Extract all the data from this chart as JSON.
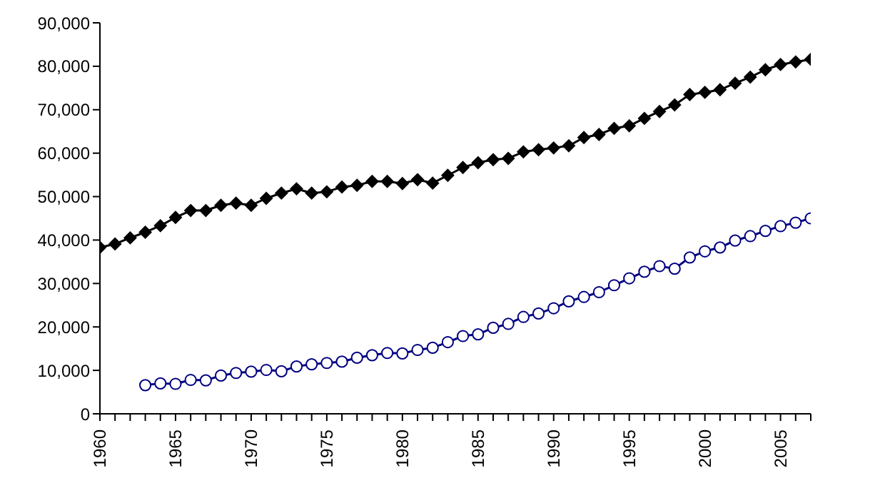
{
  "chart_data": {
    "type": "line",
    "x": [
      1960,
      1961,
      1962,
      1963,
      1964,
      1965,
      1966,
      1967,
      1968,
      1969,
      1970,
      1971,
      1972,
      1973,
      1974,
      1975,
      1976,
      1977,
      1978,
      1979,
      1980,
      1981,
      1982,
      1983,
      1984,
      1985,
      1986,
      1987,
      1988,
      1989,
      1990,
      1991,
      1992,
      1993,
      1994,
      1995,
      1996,
      1997,
      1998,
      1999,
      2000,
      2001,
      2002,
      2003,
      2004,
      2005,
      2006,
      2007
    ],
    "series": [
      {
        "color": "#000000",
        "marker": "diamond",
        "values": [
          38300,
          39100,
          40500,
          41800,
          43300,
          45200,
          46800,
          46800,
          48000,
          48500,
          48000,
          49600,
          50800,
          51800,
          50800,
          51100,
          52200,
          52600,
          53500,
          53500,
          53000,
          53900,
          53100,
          54900,
          56700,
          57800,
          58500,
          58800,
          60300,
          60800,
          61200,
          61700,
          63600,
          64300,
          65700,
          66300,
          68000,
          69600,
          71100,
          73500,
          74000,
          74600,
          76100,
          77500,
          79200,
          80400,
          81000,
          81600
        ]
      },
      {
        "color": "#000080",
        "marker": "circle",
        "values": [
          null,
          null,
          null,
          6600,
          7000,
          6900,
          7800,
          7700,
          8800,
          9400,
          9700,
          10100,
          9800,
          10900,
          11400,
          11700,
          12000,
          12900,
          13500,
          14000,
          13900,
          14700,
          15200,
          16500,
          17900,
          18300,
          19800,
          20700,
          22300,
          23100,
          24300,
          25900,
          26900,
          28000,
          29600,
          31200,
          32700,
          34000,
          33400,
          36000,
          37400,
          38300,
          39900,
          40900,
          42100,
          43200,
          44000,
          45000
        ]
      }
    ],
    "xlim": [
      1960,
      2007
    ],
    "xticks": [
      {
        "value": 1960,
        "label": "1960"
      },
      {
        "value": 1961,
        "label": null
      },
      {
        "value": 1962,
        "label": null
      },
      {
        "value": 1963,
        "label": null
      },
      {
        "value": 1964,
        "label": null
      },
      {
        "value": 1965,
        "label": "1965"
      },
      {
        "value": 1966,
        "label": null
      },
      {
        "value": 1967,
        "label": null
      },
      {
        "value": 1968,
        "label": null
      },
      {
        "value": 1969,
        "label": null
      },
      {
        "value": 1970,
        "label": "1970"
      },
      {
        "value": 1971,
        "label": null
      },
      {
        "value": 1972,
        "label": null
      },
      {
        "value": 1973,
        "label": null
      },
      {
        "value": 1974,
        "label": null
      },
      {
        "value": 1975,
        "label": "1975"
      },
      {
        "value": 1976,
        "label": null
      },
      {
        "value": 1977,
        "label": null
      },
      {
        "value": 1978,
        "label": null
      },
      {
        "value": 1979,
        "label": null
      },
      {
        "value": 1980,
        "label": "1980"
      },
      {
        "value": 1981,
        "label": null
      },
      {
        "value": 1982,
        "label": null
      },
      {
        "value": 1983,
        "label": null
      },
      {
        "value": 1984,
        "label": null
      },
      {
        "value": 1985,
        "label": "1985"
      },
      {
        "value": 1986,
        "label": null
      },
      {
        "value": 1987,
        "label": null
      },
      {
        "value": 1988,
        "label": null
      },
      {
        "value": 1989,
        "label": null
      },
      {
        "value": 1990,
        "label": "1990"
      },
      {
        "value": 1991,
        "label": null
      },
      {
        "value": 1992,
        "label": null
      },
      {
        "value": 1993,
        "label": null
      },
      {
        "value": 1994,
        "label": null
      },
      {
        "value": 1995,
        "label": "1995"
      },
      {
        "value": 1996,
        "label": null
      },
      {
        "value": 1997,
        "label": null
      },
      {
        "value": 1998,
        "label": null
      },
      {
        "value": 1999,
        "label": null
      },
      {
        "value": 2000,
        "label": "2000"
      },
      {
        "value": 2001,
        "label": null
      },
      {
        "value": 2002,
        "label": null
      },
      {
        "value": 2003,
        "label": null
      },
      {
        "value": 2004,
        "label": null
      },
      {
        "value": 2005,
        "label": "2005"
      },
      {
        "value": 2006,
        "label": null
      },
      {
        "value": 2007,
        "label": null
      }
    ],
    "ylim": [
      0,
      90000
    ],
    "yticks": [
      0,
      {
        "value": 10000,
        "label": "10,000"
      },
      {
        "value": 20000,
        "label": "20,000"
      },
      {
        "value": 30000,
        "label": "30,000"
      },
      {
        "value": 40000,
        "label": "40,000"
      },
      {
        "value": 50000,
        "label": "50,000"
      },
      {
        "value": 60000,
        "label": "60,000"
      },
      {
        "value": 70000,
        "label": "70,000"
      },
      {
        "value": 80000,
        "label": "80,000"
      },
      {
        "value": 90000,
        "label": "90,000"
      }
    ],
    "marker": "circle",
    "line_style": "solid",
    "grid": false,
    "legend": false
  }
}
